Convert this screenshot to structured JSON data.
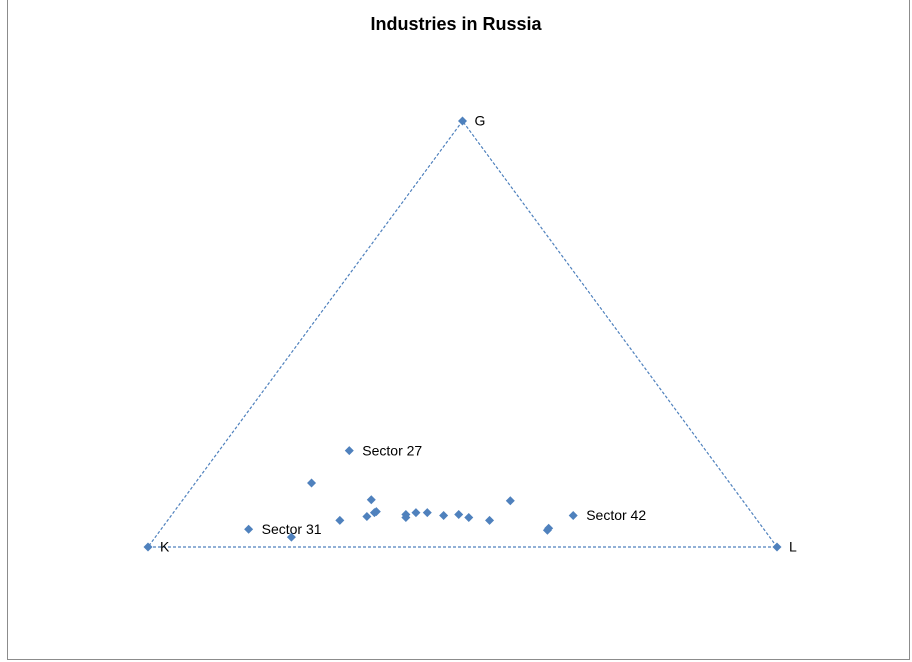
{
  "chart_data": {
    "type": "scatter",
    "title": "Industries in Russia",
    "marker_color": "#4f81bd",
    "triangle_line_color": "#4f81bd",
    "vertices": [
      {
        "label": "G",
        "x": 0.5,
        "y": 0.866
      },
      {
        "label": "K",
        "x": 0.0,
        "y": 0.0
      },
      {
        "label": "L",
        "x": 1.0,
        "y": 0.0
      }
    ],
    "points": [
      {
        "label": "Sector 27",
        "x": 0.32,
        "y": 0.196
      },
      {
        "label": "",
        "x": 0.26,
        "y": 0.13
      },
      {
        "label": "",
        "x": 0.355,
        "y": 0.096
      },
      {
        "label": "",
        "x": 0.36,
        "y": 0.07
      },
      {
        "label": "",
        "x": 0.363,
        "y": 0.072
      },
      {
        "label": "",
        "x": 0.348,
        "y": 0.062
      },
      {
        "label": "",
        "x": 0.305,
        "y": 0.054
      },
      {
        "label": "",
        "x": 0.41,
        "y": 0.066
      },
      {
        "label": "",
        "x": 0.41,
        "y": 0.06
      },
      {
        "label": "",
        "x": 0.426,
        "y": 0.07
      },
      {
        "label": "",
        "x": 0.444,
        "y": 0.07
      },
      {
        "label": "",
        "x": 0.47,
        "y": 0.064
      },
      {
        "label": "",
        "x": 0.494,
        "y": 0.066
      },
      {
        "label": "",
        "x": 0.51,
        "y": 0.06
      },
      {
        "label": "",
        "x": 0.543,
        "y": 0.054
      },
      {
        "label": "",
        "x": 0.576,
        "y": 0.094
      },
      {
        "label": "",
        "x": 0.637,
        "y": 0.038
      },
      {
        "label": "",
        "x": 0.635,
        "y": 0.034
      },
      {
        "label": "Sector 42",
        "x": 0.676,
        "y": 0.064
      },
      {
        "label": "Sector 31",
        "x": 0.16,
        "y": 0.036
      },
      {
        "label": "",
        "x": 0.228,
        "y": 0.02
      }
    ]
  }
}
